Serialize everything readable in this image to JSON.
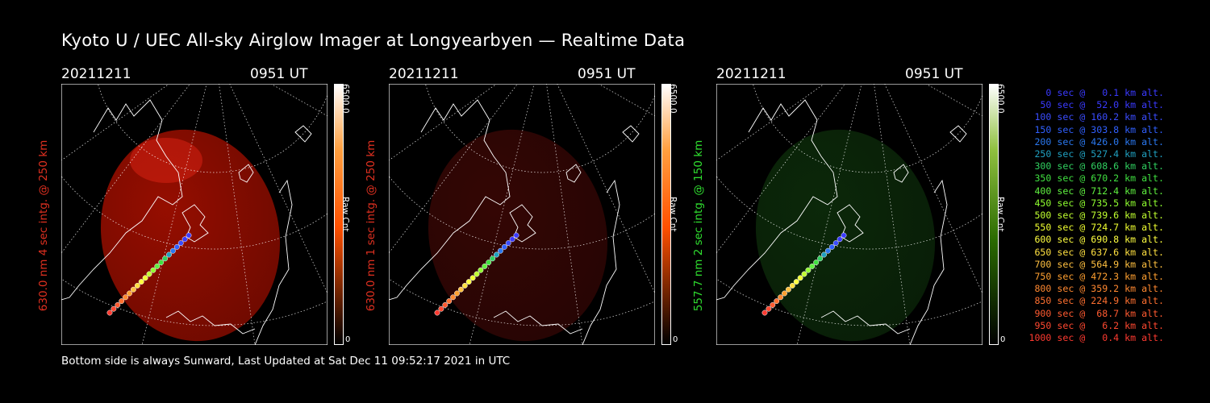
{
  "title": "Kyoto U / UEC All-sky Airglow Imager at Longyearbyen — Realtime Data",
  "footer": "Bottom side is always Sunward, Last Updated at Sat Dec 11 09:52:17 2021 in UTC",
  "panels": [
    {
      "date": "20211211",
      "time": "0951 UT",
      "ylabel": "630.0 nm 4 sec intg. @ 250 km",
      "color": "#e03020",
      "cbar_max": "6500.0",
      "cbar_label": "Raw Cnt",
      "cbar_min": "0",
      "emission_color": "#b01000",
      "emission_opacity": 0.85
    },
    {
      "date": "20211211",
      "time": "0951 UT",
      "ylabel": "630.0 nm 1 sec intg. @ 250 km",
      "color": "#e03020",
      "cbar_max": "6500.0",
      "cbar_label": "Raw Cnt",
      "cbar_min": "0",
      "emission_color": "#3a0705",
      "emission_opacity": 0.9
    },
    {
      "date": "20211211",
      "time": "0951 UT",
      "ylabel": "557.7 nm 2 sec intg. @ 150 km",
      "color": "#30e030",
      "cbar_max": "6500.0",
      "cbar_label": "Raw Cnt",
      "cbar_min": "0",
      "emission_color": "#0c2a0a",
      "emission_opacity": 0.95
    }
  ],
  "legend": [
    {
      "text": "0 sec @   0.1 km alt.",
      "color": "#3a3aff"
    },
    {
      "text": "50 sec @  52.0 km alt.",
      "color": "#3a3aff"
    },
    {
      "text": "100 sec @ 160.2 km alt.",
      "color": "#3a4cff"
    },
    {
      "text": "150 sec @ 303.8 km alt.",
      "color": "#3060ff"
    },
    {
      "text": "200 sec @ 426.0 km alt.",
      "color": "#2a78f0"
    },
    {
      "text": "250 sec @ 527.4 km alt.",
      "color": "#20a0c0"
    },
    {
      "text": "300 sec @ 608.6 km alt.",
      "color": "#30d060"
    },
    {
      "text": "350 sec @ 670.2 km alt.",
      "color": "#40e040"
    },
    {
      "text": "400 sec @ 712.4 km alt.",
      "color": "#60f040"
    },
    {
      "text": "450 sec @ 735.5 km alt.",
      "color": "#90ff30"
    },
    {
      "text": "500 sec @ 739.6 km alt.",
      "color": "#c0ff30"
    },
    {
      "text": "550 sec @ 724.7 km alt.",
      "color": "#f0ff30"
    },
    {
      "text": "600 sec @ 690.8 km alt.",
      "color": "#ffff40"
    },
    {
      "text": "650 sec @ 637.6 km alt.",
      "color": "#ffe040"
    },
    {
      "text": "700 sec @ 564.9 km alt.",
      "color": "#ffc040"
    },
    {
      "text": "750 sec @ 472.3 km alt.",
      "color": "#ffa030"
    },
    {
      "text": "800 sec @ 359.2 km alt.",
      "color": "#ff8830"
    },
    {
      "text": "850 sec @ 224.9 km alt.",
      "color": "#ff7030"
    },
    {
      "text": "900 sec @  68.7 km alt.",
      "color": "#ff5a30"
    },
    {
      "text": "950 sec @   6.2 km alt.",
      "color": "#ff4830"
    },
    {
      "text": "1000 sec @   0.4 km alt.",
      "color": "#ff3a30"
    }
  ],
  "chart_data": {
    "type": "scatter",
    "title": "Kyoto U / UEC All-sky Airglow Imager at Longyearbyen — Realtime Data",
    "series": [
      {
        "values": [
          {
            "x": 0,
            "y": 0.1
          },
          {
            "x": 50,
            "y": 52.0
          },
          {
            "x": 100,
            "y": 160.2
          },
          {
            "x": 150,
            "y": 303.8
          },
          {
            "x": 200,
            "y": 426.0
          },
          {
            "x": 250,
            "y": 527.4
          },
          {
            "x": 300,
            "y": 608.6
          },
          {
            "x": 350,
            "y": 670.2
          },
          {
            "x": 400,
            "y": 712.4
          },
          {
            "x": 450,
            "y": 735.5
          },
          {
            "x": 500,
            "y": 739.6
          },
          {
            "x": 550,
            "y": 724.7
          },
          {
            "x": 600,
            "y": 690.8
          },
          {
            "x": 650,
            "y": 637.6
          },
          {
            "x": 700,
            "y": 564.9
          },
          {
            "x": 750,
            "y": 472.3
          },
          {
            "x": 800,
            "y": 359.2
          },
          {
            "x": 850,
            "y": 224.9
          },
          {
            "x": 900,
            "y": 68.7
          },
          {
            "x": 950,
            "y": 6.2
          },
          {
            "x": 1000,
            "y": 0.4
          }
        ]
      }
    ],
    "colorbar": {
      "min": 0,
      "max": 6500.0,
      "label": "Raw Cnt"
    }
  }
}
